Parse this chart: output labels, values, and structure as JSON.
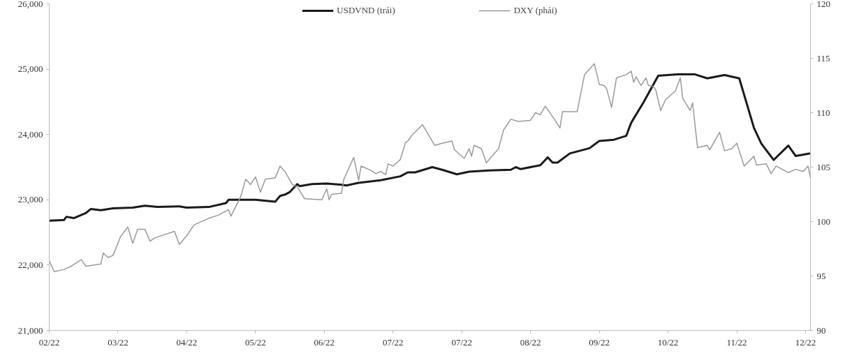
{
  "chart_data": {
    "type": "line",
    "legend": "top",
    "grid": false,
    "line_style": "solid",
    "xlim": [
      "2022-02-11",
      "2022-12-18"
    ],
    "xticks": [
      {
        "value": "2022-02-11",
        "label": "02/22"
      },
      {
        "value": "2022-03-11",
        "label": "03/22"
      },
      {
        "value": "2022-04-08",
        "label": "04/22"
      },
      {
        "value": "2022-05-06",
        "label": "05/22"
      },
      {
        "value": "2022-06-03",
        "label": "06/22"
      },
      {
        "value": "2022-07-01",
        "label": "07/22"
      },
      {
        "value": "2022-07-29",
        "label": "07/22"
      },
      {
        "value": "2022-08-26",
        "label": "08/22"
      },
      {
        "value": "2022-09-23",
        "label": "09/22"
      },
      {
        "value": "2022-10-21",
        "label": "10/22"
      },
      {
        "value": "2022-11-18",
        "label": "11/22"
      },
      {
        "value": "2022-12-16",
        "label": "12/22"
      }
    ],
    "ylim": [
      21000,
      26000
    ],
    "yticks": [
      {
        "value": 21000,
        "label": "21,000"
      },
      {
        "value": 22000,
        "label": "22,000"
      },
      {
        "value": 23000,
        "label": "23,000"
      },
      {
        "value": 24000,
        "label": "24,000"
      },
      {
        "value": 25000,
        "label": "25,000"
      },
      {
        "value": 26000,
        "label": "26,000"
      }
    ],
    "y2lim": [
      90,
      120
    ],
    "y2ticks": [
      90,
      95,
      100,
      105,
      110,
      115,
      120
    ],
    "series": [
      {
        "name": "USDVND (trái)",
        "color": "#1a1a1a",
        "x": [
          "2022-02-11",
          "2022-02-17",
          "2022-02-18",
          "2022-02-21",
          "2022-02-26",
          "2022-02-28",
          "2022-03-04",
          "2022-03-09",
          "2022-03-17",
          "2022-03-22",
          "2022-03-27",
          "2022-04-05",
          "2022-04-08",
          "2022-04-17",
          "2022-04-24",
          "2022-04-25",
          "2022-04-28",
          "2022-05-06",
          "2022-05-14",
          "2022-05-16",
          "2022-05-18",
          "2022-05-20",
          "2022-05-23",
          "2022-05-24",
          "2022-05-29",
          "2022-06-04",
          "2022-06-10",
          "2022-06-12",
          "2022-06-17",
          "2022-06-26",
          "2022-07-04",
          "2022-07-07",
          "2022-07-10",
          "2022-07-17",
          "2022-07-21",
          "2022-07-27",
          "2022-08-01",
          "2022-08-09",
          "2022-08-18",
          "2022-08-20",
          "2022-08-22",
          "2022-08-30",
          "2022-09-02",
          "2022-09-04",
          "2022-09-06",
          "2022-09-11",
          "2022-09-19",
          "2022-09-23",
          "2022-09-29",
          "2022-10-04",
          "2022-10-06",
          "2022-10-11",
          "2022-10-17",
          "2022-10-25",
          "2022-11-01",
          "2022-11-06",
          "2022-11-13",
          "2022-11-19",
          "2022-11-25",
          "2022-11-28",
          "2022-12-03",
          "2022-12-09",
          "2022-12-12",
          "2022-12-18"
        ],
        "values": [
          22680,
          22690,
          22740,
          22720,
          22800,
          22860,
          22840,
          22870,
          22880,
          22910,
          22890,
          22900,
          22880,
          22890,
          22950,
          23000,
          23000,
          23000,
          22970,
          23060,
          23080,
          23120,
          23240,
          23210,
          23240,
          23250,
          23230,
          23220,
          23260,
          23300,
          23360,
          23420,
          23420,
          23500,
          23460,
          23390,
          23430,
          23450,
          23460,
          23500,
          23470,
          23530,
          23650,
          23570,
          23570,
          23710,
          23790,
          23900,
          23920,
          23980,
          24180,
          24490,
          24900,
          24920,
          24920,
          24860,
          24910,
          24860,
          24100,
          23860,
          23610,
          23830,
          23670,
          23710
        ]
      },
      {
        "name": "DXY (phải)",
        "color": "#999999",
        "axis": "y2",
        "x": [
          "2022-02-11",
          "2022-02-13",
          "2022-02-17",
          "2022-02-20",
          "2022-02-24",
          "2022-02-26",
          "2022-03-04",
          "2022-03-05",
          "2022-03-07",
          "2022-03-09",
          "2022-03-12",
          "2022-03-15",
          "2022-03-17",
          "2022-03-19",
          "2022-03-22",
          "2022-03-24",
          "2022-03-26",
          "2022-04-03",
          "2022-04-05",
          "2022-04-08",
          "2022-04-11",
          "2022-04-17",
          "2022-04-21",
          "2022-04-25",
          "2022-04-26",
          "2022-04-28",
          "2022-04-30",
          "2022-05-02",
          "2022-05-04",
          "2022-05-06",
          "2022-05-08",
          "2022-05-10",
          "2022-05-14",
          "2022-05-16",
          "2022-05-18",
          "2022-05-21",
          "2022-05-23",
          "2022-05-26",
          "2022-06-02",
          "2022-06-04",
          "2022-06-05",
          "2022-06-06",
          "2022-06-10",
          "2022-06-11",
          "2022-06-15",
          "2022-06-17",
          "2022-06-18",
          "2022-06-22",
          "2022-06-24",
          "2022-06-26",
          "2022-06-28",
          "2022-06-29",
          "2022-07-01",
          "2022-07-04",
          "2022-07-06",
          "2022-07-07",
          "2022-07-09",
          "2022-07-13",
          "2022-07-18",
          "2022-07-21",
          "2022-07-25",
          "2022-07-26",
          "2022-07-30",
          "2022-08-01",
          "2022-08-02",
          "2022-08-03",
          "2022-08-06",
          "2022-08-08",
          "2022-08-13",
          "2022-08-15",
          "2022-08-18",
          "2022-08-21",
          "2022-08-26",
          "2022-08-28",
          "2022-08-30",
          "2022-09-01",
          "2022-09-05",
          "2022-09-07",
          "2022-09-08",
          "2022-09-14",
          "2022-09-17",
          "2022-09-21",
          "2022-09-23",
          "2022-09-25",
          "2022-09-26",
          "2022-09-28",
          "2022-09-30",
          "2022-10-04",
          "2022-10-06",
          "2022-10-07",
          "2022-10-08",
          "2022-10-10",
          "2022-10-12",
          "2022-10-13",
          "2022-10-15",
          "2022-10-16",
          "2022-10-18",
          "2022-10-20",
          "2022-10-22",
          "2022-10-24",
          "2022-10-26",
          "2022-10-27",
          "2022-10-30",
          "2022-10-31",
          "2022-11-02",
          "2022-11-06",
          "2022-11-07",
          "2022-11-11",
          "2022-11-13",
          "2022-11-16",
          "2022-11-18",
          "2022-11-21",
          "2022-11-25",
          "2022-11-26",
          "2022-11-30",
          "2022-12-02",
          "2022-12-04",
          "2022-12-09",
          "2022-12-12",
          "2022-12-15",
          "2022-12-17",
          "2022-12-18"
        ],
        "values": [
          96.4,
          95.4,
          95.6,
          95.9,
          96.5,
          95.9,
          96.1,
          97.1,
          96.7,
          96.9,
          98.6,
          99.5,
          98.0,
          99.3,
          99.3,
          98.2,
          98.5,
          99.1,
          97.9,
          98.7,
          99.7,
          100.3,
          100.6,
          101.1,
          100.5,
          101.4,
          102.3,
          103.9,
          103.4,
          104.1,
          102.7,
          103.9,
          104.0,
          105.1,
          104.6,
          103.4,
          103.2,
          102.1,
          102.0,
          103.0,
          102.0,
          102.5,
          102.6,
          103.9,
          105.9,
          103.8,
          105.1,
          104.7,
          104.4,
          104.6,
          104.3,
          105.3,
          105.1,
          105.7,
          107.2,
          107.4,
          108.0,
          108.9,
          107.0,
          107.2,
          107.4,
          106.6,
          105.8,
          106.7,
          106.0,
          107.0,
          106.7,
          105.4,
          106.7,
          108.4,
          109.4,
          109.2,
          109.3,
          110.0,
          109.8,
          110.6,
          109.3,
          108.6,
          110.1,
          110.1,
          113.5,
          114.5,
          112.6,
          112.5,
          112.2,
          110.5,
          113.2,
          113.5,
          113.8,
          112.8,
          113.3,
          112.5,
          113.2,
          112.5,
          112.4,
          112.1,
          110.2,
          111.2,
          111.6,
          112.0,
          113.2,
          111.3,
          110.2,
          110.9,
          106.8,
          107.0,
          106.6,
          108.2,
          106.5,
          106.7,
          107.2,
          105.1,
          106.0,
          105.2,
          105.3,
          104.4,
          105.1,
          104.5,
          104.8,
          104.6,
          105.1,
          104.0
        ]
      }
    ]
  }
}
